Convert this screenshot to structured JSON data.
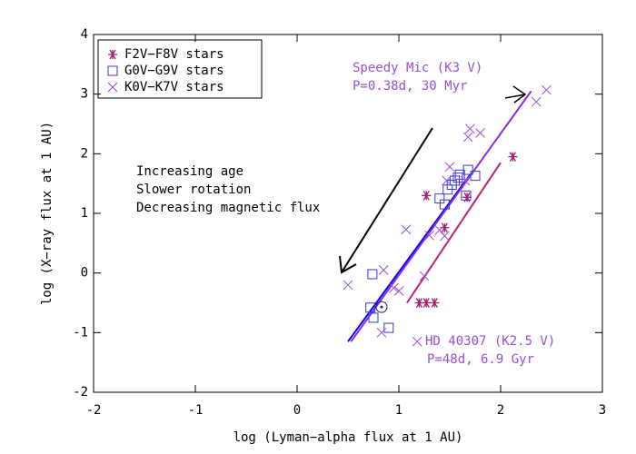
{
  "chart_data": {
    "type": "scatter",
    "xlabel": "log (Lyman−alpha flux at 1 AU)",
    "ylabel": "log (X−ray flux at 1 AU)",
    "xlim": [
      -2,
      3
    ],
    "ylim": [
      -2,
      4
    ],
    "xticks": [
      -2,
      -1,
      0,
      1,
      2,
      3
    ],
    "yticks": [
      -2,
      -1,
      0,
      1,
      2,
      3,
      4
    ],
    "legend": "upper left",
    "series": [
      {
        "name": "F2V−F8V stars",
        "color": "#a3206a",
        "marker": "asterisk",
        "x": [
          1.27,
          1.45,
          1.67,
          1.2,
          1.27,
          1.35,
          2.12
        ],
        "values": [
          1.3,
          0.76,
          1.27,
          -0.5,
          -0.5,
          -0.5,
          1.95
        ]
      },
      {
        "name": "G0V−G9V stars",
        "color": "#3838d0",
        "marker": "square",
        "x": [
          0.74,
          0.72,
          0.75,
          0.9,
          1.4,
          1.48,
          1.52,
          1.55,
          1.6,
          1.68,
          1.75,
          1.66,
          1.45,
          1.58
        ],
        "values": [
          -0.02,
          -0.58,
          -0.75,
          -0.92,
          1.25,
          1.4,
          1.48,
          1.55,
          1.65,
          1.73,
          1.63,
          1.3,
          1.15,
          1.6
        ]
      },
      {
        "name": "K0V−K7V stars",
        "color": "#9a4fd8",
        "marker": "cross",
        "x": [
          0.5,
          0.85,
          0.83,
          1.0,
          0.95,
          1.07,
          1.25,
          1.3,
          1.4,
          1.45,
          1.47,
          1.5,
          1.65,
          1.68,
          1.7,
          1.8,
          2.35,
          2.45,
          1.18
        ],
        "values": [
          -0.2,
          0.05,
          -1.0,
          -0.3,
          -0.25,
          0.73,
          -0.05,
          0.63,
          0.72,
          0.62,
          1.55,
          1.78,
          1.55,
          2.28,
          2.42,
          2.35,
          2.87,
          3.07,
          -1.15
        ]
      }
    ],
    "sun": {
      "x": 0.83,
      "y": -0.57,
      "color": "#202060"
    },
    "fits": [
      {
        "color": "#0000ff",
        "x": [
          0.5,
          1.7
        ],
        "y": [
          -1.15,
          1.65
        ]
      },
      {
        "color": "#8a2be2",
        "x": [
          0.53,
          2.3
        ],
        "y": [
          -1.15,
          3.05
        ]
      },
      {
        "color": "#bb2277",
        "x": [
          1.08,
          2.0
        ],
        "y": [
          -0.5,
          1.85
        ]
      }
    ],
    "annotations": [
      "Increasing age",
      "Slower rotation",
      "Decreasing magnetic flux",
      "Speedy Mic (K3 V)",
      "P=0.38d, 30 Myr",
      "HD 40307 (K2.5 V)",
      "P=48d, 6.9 Gyr"
    ]
  }
}
